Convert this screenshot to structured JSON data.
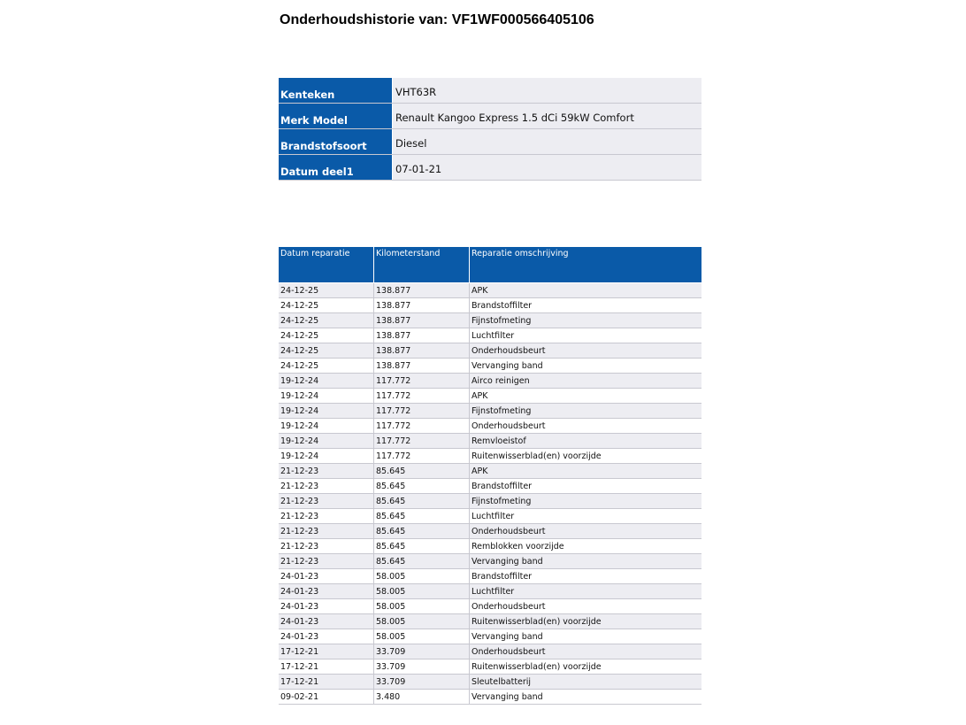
{
  "title": "Onderhoudshistorie van: VF1WF000566405106",
  "vehicle": [
    {
      "label": "Kenteken",
      "value": "VHT63R"
    },
    {
      "label": "Merk Model",
      "value": "Renault Kangoo Express 1.5 dCi 59kW Comfort"
    },
    {
      "label": "Brandstofsoort",
      "value": "Diesel"
    },
    {
      "label": "Datum deel1",
      "value": "07-01-21"
    }
  ],
  "history": {
    "headers": [
      "Datum reparatie",
      "Kilometerstand",
      "Reparatie omschrijving"
    ],
    "rows": [
      [
        "24-12-25",
        "138.877",
        "APK"
      ],
      [
        "24-12-25",
        "138.877",
        "Brandstoffilter"
      ],
      [
        "24-12-25",
        "138.877",
        "Fijnstofmeting"
      ],
      [
        "24-12-25",
        "138.877",
        "Luchtfilter"
      ],
      [
        "24-12-25",
        "138.877",
        "Onderhoudsbeurt"
      ],
      [
        "24-12-25",
        "138.877",
        "Vervanging band"
      ],
      [
        "19-12-24",
        "117.772",
        "Airco reinigen"
      ],
      [
        "19-12-24",
        "117.772",
        "APK"
      ],
      [
        "19-12-24",
        "117.772",
        "Fijnstofmeting"
      ],
      [
        "19-12-24",
        "117.772",
        "Onderhoudsbeurt"
      ],
      [
        "19-12-24",
        "117.772",
        "Remvloeistof"
      ],
      [
        "19-12-24",
        "117.772",
        "Ruitenwisserblad(en) voorzijde"
      ],
      [
        "21-12-23",
        "85.645",
        "APK"
      ],
      [
        "21-12-23",
        "85.645",
        "Brandstoffilter"
      ],
      [
        "21-12-23",
        "85.645",
        "Fijnstofmeting"
      ],
      [
        "21-12-23",
        "85.645",
        "Luchtfilter"
      ],
      [
        "21-12-23",
        "85.645",
        "Onderhoudsbeurt"
      ],
      [
        "21-12-23",
        "85.645",
        "Remblokken voorzijde"
      ],
      [
        "21-12-23",
        "85.645",
        "Vervanging band"
      ],
      [
        "24-01-23",
        "58.005",
        "Brandstoffilter"
      ],
      [
        "24-01-23",
        "58.005",
        "Luchtfilter"
      ],
      [
        "24-01-23",
        "58.005",
        "Onderhoudsbeurt"
      ],
      [
        "24-01-23",
        "58.005",
        "Ruitenwisserblad(en) voorzijde"
      ],
      [
        "24-01-23",
        "58.005",
        "Vervanging band"
      ],
      [
        "17-12-21",
        "33.709",
        "Onderhoudsbeurt"
      ],
      [
        "17-12-21",
        "33.709",
        "Ruitenwisserblad(en) voorzijde"
      ],
      [
        "17-12-21",
        "33.709",
        "Sleutelbatterij"
      ],
      [
        "09-02-21",
        "3.480",
        "Vervanging band"
      ]
    ]
  }
}
